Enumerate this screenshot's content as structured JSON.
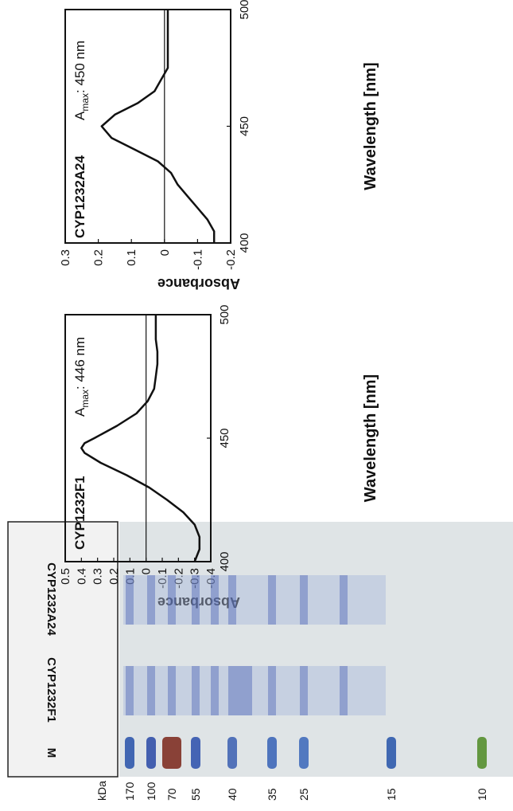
{
  "chart_data": [
    {
      "type": "line",
      "title": "CYP1232F1",
      "annotation": {
        "base": "A",
        "sub": "max",
        "text": ": 446 nm"
      },
      "x_label": "Wavelength [nm]",
      "y_label": "Absorbance",
      "x": [
        400,
        405,
        410,
        415,
        420,
        425,
        430,
        435,
        440,
        444,
        446,
        448,
        450,
        455,
        460,
        465,
        470,
        475,
        480,
        485,
        490,
        495,
        500
      ],
      "series": [
        {
          "name": "CYP1232F1",
          "color": "#111111",
          "values": [
            -0.3,
            -0.33,
            -0.33,
            -0.3,
            -0.23,
            -0.13,
            -0.02,
            0.12,
            0.28,
            0.38,
            0.4,
            0.38,
            0.32,
            0.18,
            0.06,
            -0.01,
            -0.05,
            -0.06,
            -0.07,
            -0.07,
            -0.06,
            -0.06,
            -0.06
          ]
        }
      ],
      "xlim": [
        400,
        500
      ],
      "xticks": [
        400,
        450,
        500
      ],
      "ylim": [
        -0.4,
        0.5
      ],
      "yticks": [
        -0.4,
        -0.3,
        -0.2,
        -0.1,
        0,
        0.1,
        0.2,
        0.3,
        0.4,
        0.5
      ]
    },
    {
      "type": "line",
      "title": "CYP1232A24",
      "annotation": {
        "base": "A",
        "sub": "max",
        "text": ": 450 nm"
      },
      "x_label": "Wavelength [nm]",
      "y_label": "Absorbance",
      "x": [
        400,
        405,
        410,
        415,
        420,
        425,
        430,
        435,
        440,
        445,
        450,
        455,
        460,
        465,
        470,
        475,
        480,
        490,
        500
      ],
      "series": [
        {
          "name": "CYP1232A24",
          "color": "#111111",
          "values": [
            -0.15,
            -0.15,
            -0.13,
            -0.1,
            -0.07,
            -0.04,
            -0.02,
            0.02,
            0.09,
            0.16,
            0.19,
            0.15,
            0.08,
            0.03,
            0.01,
            -0.01,
            -0.01,
            -0.01,
            -0.01
          ]
        }
      ],
      "xlim": [
        400,
        500
      ],
      "xticks": [
        400,
        450,
        500
      ],
      "ylim": [
        -0.2,
        0.3
      ],
      "yticks": [
        -0.2,
        -0.1,
        0,
        0.1,
        0.2,
        0.3
      ]
    }
  ],
  "gel": {
    "unit": "kDa",
    "markers": [
      "170",
      "100",
      "70",
      "55",
      "40",
      "35",
      "25",
      "15",
      "10"
    ],
    "lanes": [
      "M",
      "CYP1232F1",
      "CYP1232A24"
    ]
  }
}
